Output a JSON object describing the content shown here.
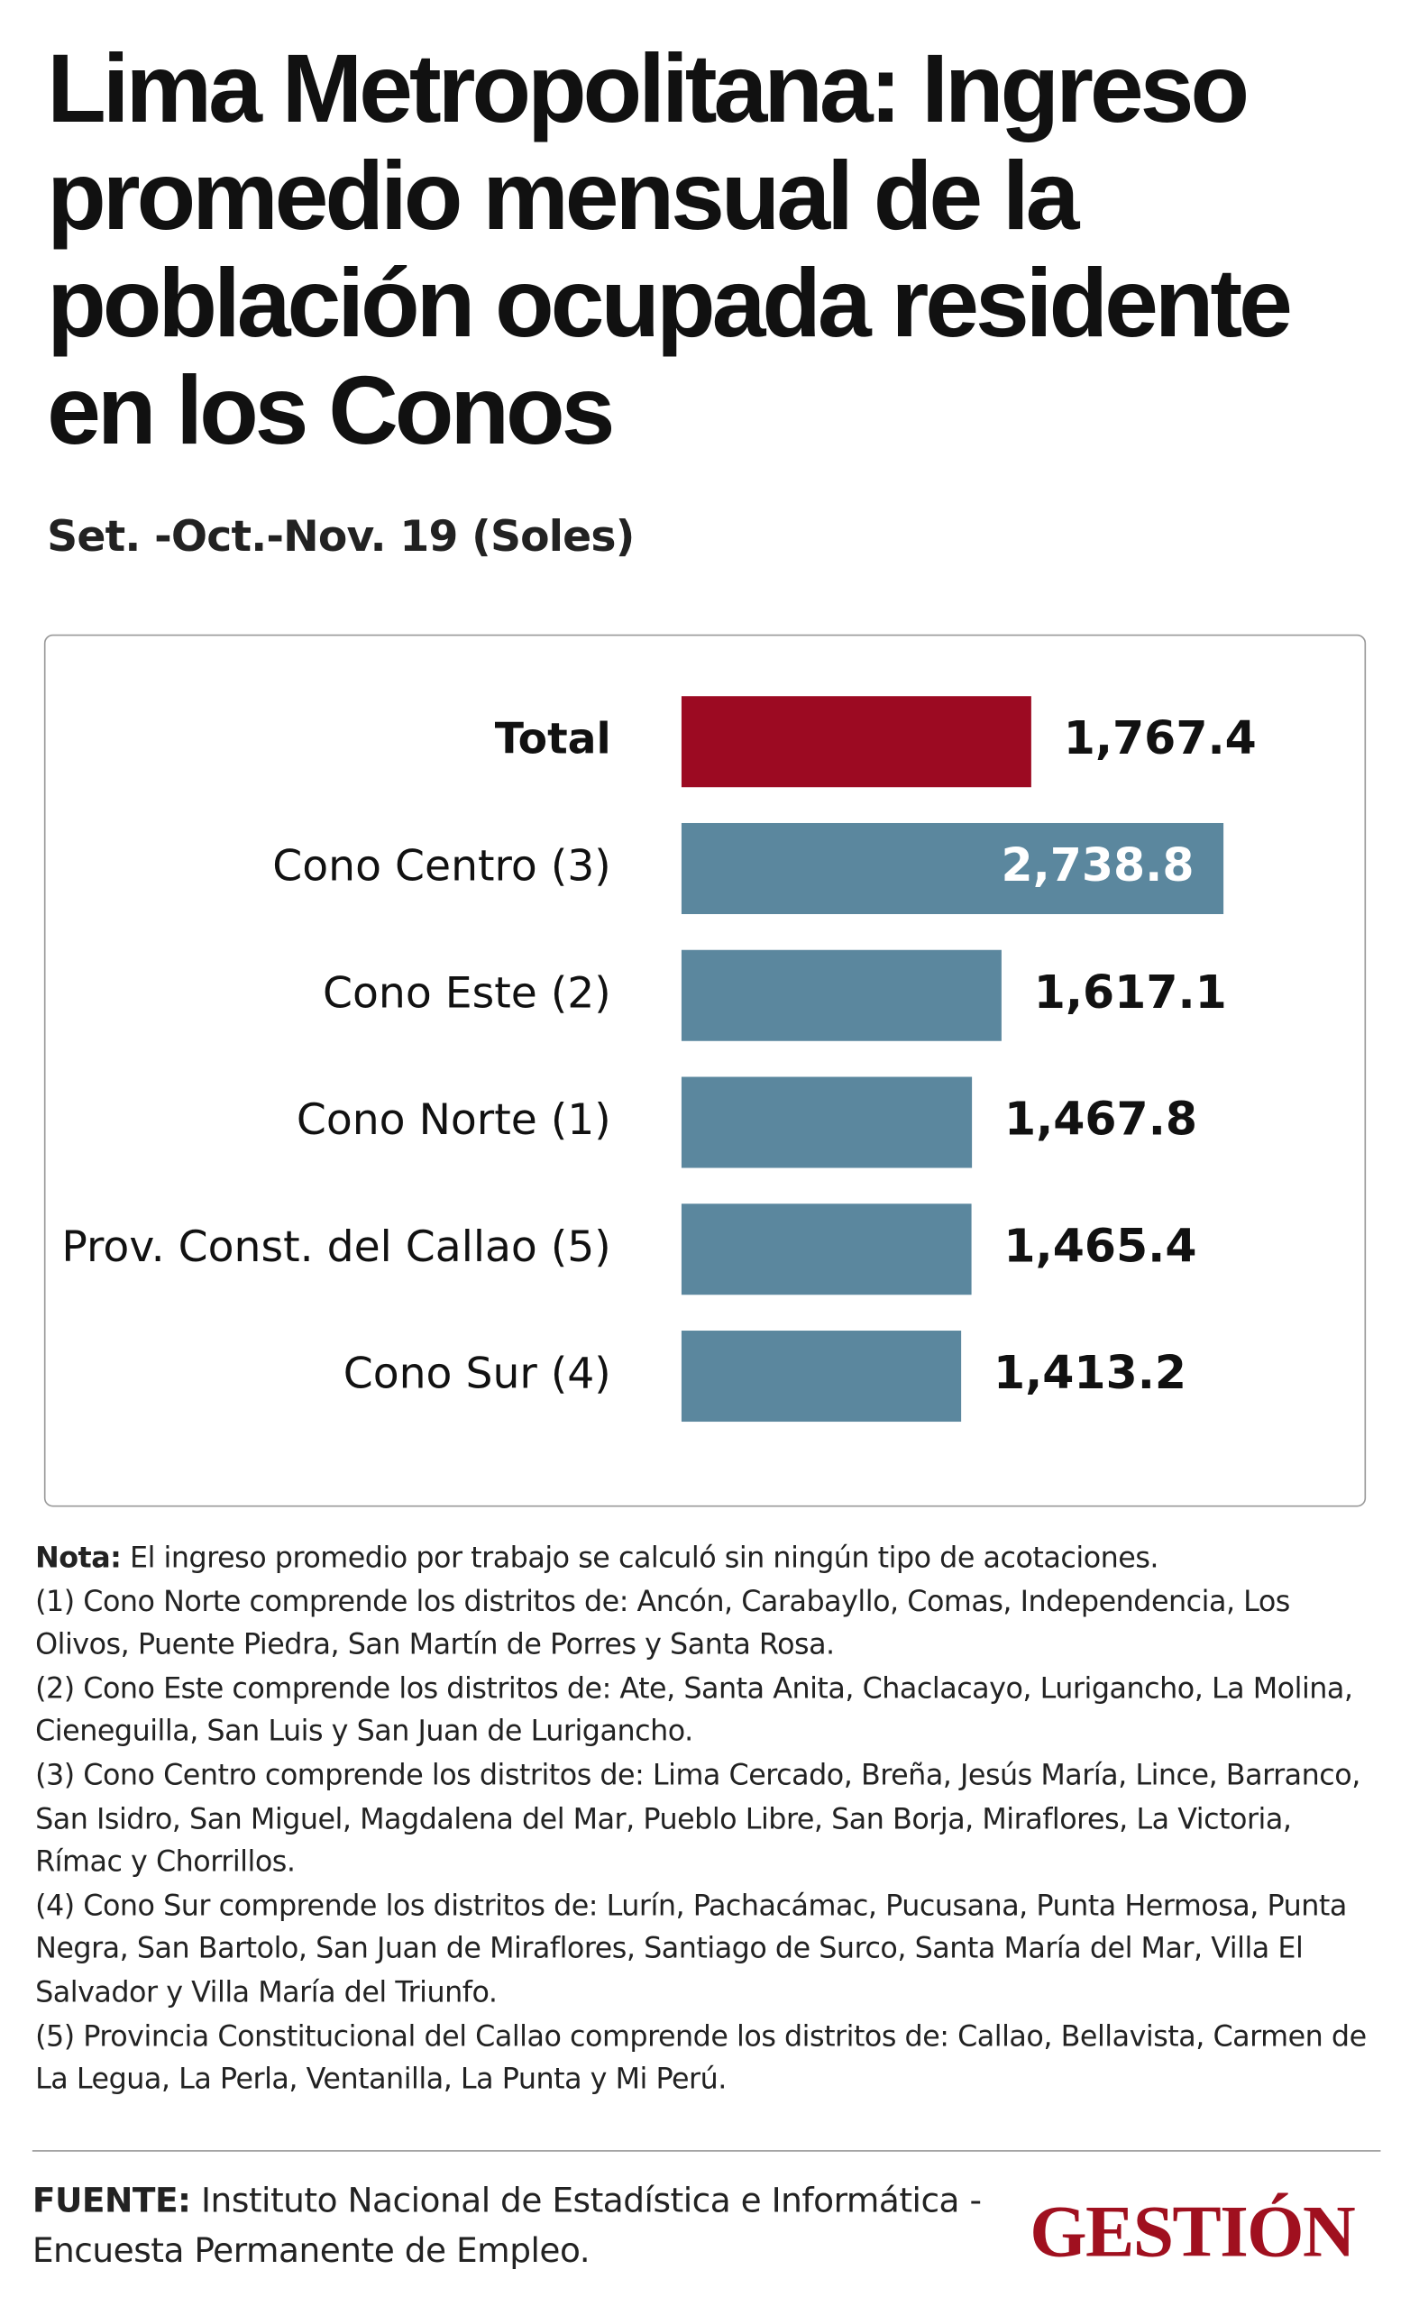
{
  "chart_data": {
    "type": "bar",
    "orientation": "horizontal",
    "title": "Lima Metropolitana: Ingreso promedio mensual de la población ocupada residente en los Conos",
    "subtitle": "Set. -Oct.-Nov. 19 (Soles)",
    "categories": [
      "Total",
      "Cono Centro (3)",
      "Cono Este (2)",
      "Cono Norte (1)",
      "Prov. Const. del Callao (5)",
      "Cono Sur (4)"
    ],
    "values": [
      1767.4,
      2738.8,
      1617.1,
      1467.8,
      1465.4,
      1413.2
    ],
    "value_labels": [
      "1,767.4",
      "2,738.8",
      "1,617.1",
      "1,467.8",
      "1,465.4",
      "1,413.2"
    ],
    "colors": [
      "#9c0a22",
      "#5b879e",
      "#5b879e",
      "#5b879e",
      "#5b879e",
      "#5b879e"
    ]
  },
  "notes": {
    "label": "Nota:",
    "text": "El ingreso promedio por trabajo se calculó sin ningún tipo de acotaciones.",
    "items": [
      "(1) Cono Norte comprende los distritos de: Ancón, Carabayllo, Comas, Independencia, Los Olivos, Puente Piedra, San Martín de Porres y Santa Rosa.",
      "(2) Cono Este comprende los distritos de: Ate, Santa Anita, Chaclacayo, Lurigancho, La Molina, Cieneguilla, San Luis y San Juan de Lurigancho.",
      "(3) Cono Centro comprende los distritos de: Lima Cercado, Breña, Jesús María, Lince, Barranco, San Isidro, San Miguel, Magdalena del Mar, Pueblo Libre, San Borja, Miraflores, La Victoria, Rímac y Chorrillos.",
      "(4) Cono Sur comprende los distritos de: Lurín, Pachacámac, Pucusana, Punta Hermosa, Punta Negra, San Bartolo, San Juan de Miraflores, Santiago de Surco, Santa María del Mar, Villa El Salvador y Villa María del Triunfo.",
      "(5) Provincia Constitucional del Callao comprende los distritos de: Callao, Bellavista, Carmen de La Legua, La Perla, Ventanilla, La Punta y Mi Perú."
    ]
  },
  "footer": {
    "source_label": "FUENTE:",
    "source": "Instituto Nacional de Estadística e Informática - Encuesta Permanente de Empleo.",
    "brand": "GESTIÓN"
  }
}
